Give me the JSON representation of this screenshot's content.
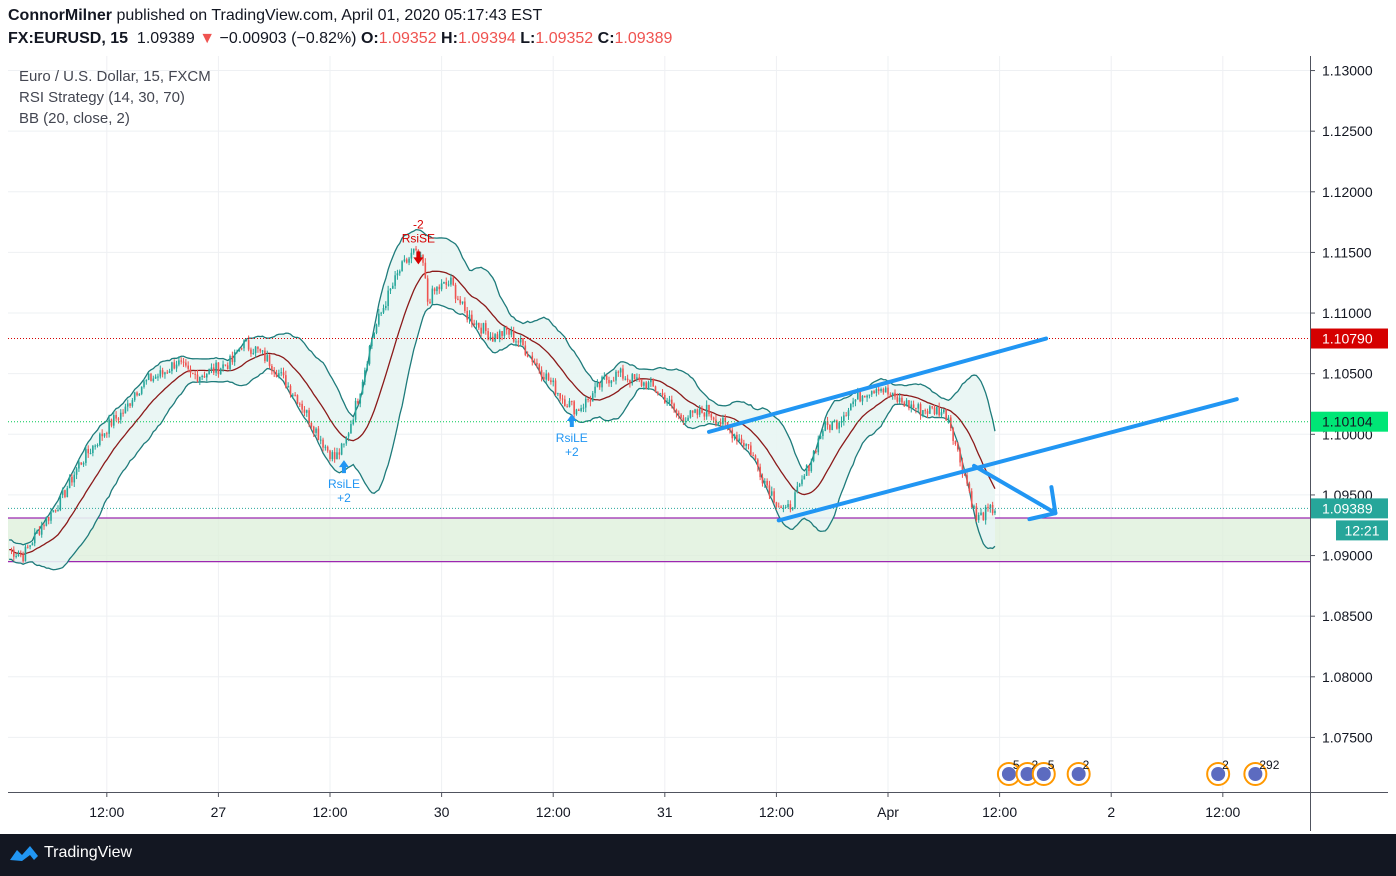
{
  "header": {
    "author": "ConnorMilner",
    "published_text": " published on TradingView.com, April 01, 2020 05:17:43 EST",
    "symbol": "FX:EURUSD, 15",
    "last": "1.09389",
    "change_arrow": "▼",
    "change": "−0.00903 (−0.82%)",
    "o_label": "O:",
    "o_value": "1.09352",
    "h_label": "H:",
    "h_value": "1.09394",
    "l_label": "L:",
    "l_value": "1.09352",
    "c_label": "C:",
    "c_value": "1.09389"
  },
  "legend": {
    "title": "Euro / U.S. Dollar, 15, FXCM",
    "strategy": "RSI Strategy (14, 30, 70)",
    "bb": "BB (20, close, 2)"
  },
  "footer": {
    "brand": "TradingView"
  },
  "colors": {
    "up": "#26a69a",
    "down": "#ef5350",
    "bb_band": "#1e7b7b",
    "bb_basis": "#8b1a1a",
    "fill": "#e8f5f3",
    "zone": "#dcefd9",
    "zone_line": "#9c27b0",
    "arrow": "#2196f3",
    "red_badge": "#d50000",
    "green_badge": "#00e676",
    "teal_badge": "#26a69a"
  },
  "chart_data": {
    "type": "candlestick",
    "title": "Euro / U.S. Dollar, 15, FXCM",
    "ylim": [
      1.0705,
      1.1312
    ],
    "y_ticks": [
      "1.13000",
      "1.12500",
      "1.12000",
      "1.11500",
      "1.11000",
      "1.10500",
      "1.10000",
      "1.09500",
      "1.09000",
      "1.08500",
      "1.08000",
      "1.07500"
    ],
    "x_ticks": [
      "12:00",
      "27",
      "12:00",
      "30",
      "12:00",
      "31",
      "12:00",
      "Apr",
      "12:00",
      "2",
      "12:00"
    ],
    "x_tick_index": [
      42,
      90,
      138,
      186,
      234,
      282,
      330,
      378,
      426,
      474,
      522
    ],
    "n_slots": 560,
    "price_path": [
      [
        0,
        1.0905
      ],
      [
        6,
        1.09
      ],
      [
        14,
        1.0925
      ],
      [
        22,
        1.0945
      ],
      [
        30,
        1.0975
      ],
      [
        38,
        1.0995
      ],
      [
        44,
        1.101
      ],
      [
        50,
        1.102
      ],
      [
        54,
        1.1035
      ],
      [
        60,
        1.1045
      ],
      [
        66,
        1.105
      ],
      [
        72,
        1.106
      ],
      [
        78,
        1.1048
      ],
      [
        84,
        1.105
      ],
      [
        90,
        1.1055
      ],
      [
        96,
        1.106
      ],
      [
        100,
        1.1075
      ],
      [
        106,
        1.107
      ],
      [
        112,
        1.106
      ],
      [
        118,
        1.1045
      ],
      [
        124,
        1.103
      ],
      [
        130,
        1.101
      ],
      [
        136,
        1.099
      ],
      [
        140,
        1.098
      ],
      [
        144,
        1.099
      ],
      [
        150,
        1.103
      ],
      [
        156,
        1.108
      ],
      [
        162,
        1.111
      ],
      [
        168,
        1.1135
      ],
      [
        174,
        1.115
      ],
      [
        178,
        1.114
      ],
      [
        180,
        1.111
      ],
      [
        184,
        1.112
      ],
      [
        190,
        1.1125
      ],
      [
        196,
        1.11
      ],
      [
        202,
        1.109
      ],
      [
        208,
        1.108
      ],
      [
        214,
        1.1085
      ],
      [
        220,
        1.1075
      ],
      [
        226,
        1.106
      ],
      [
        232,
        1.1045
      ],
      [
        238,
        1.103
      ],
      [
        244,
        1.102
      ],
      [
        250,
        1.103
      ],
      [
        256,
        1.1045
      ],
      [
        262,
        1.105
      ],
      [
        268,
        1.1045
      ],
      [
        276,
        1.104
      ],
      [
        282,
        1.103
      ],
      [
        288,
        1.1015
      ],
      [
        294,
        1.1015
      ],
      [
        300,
        1.102
      ],
      [
        306,
        1.101
      ],
      [
        312,
        1.1
      ],
      [
        318,
        1.099
      ],
      [
        324,
        1.0965
      ],
      [
        330,
        1.0945
      ],
      [
        334,
        1.0935
      ],
      [
        340,
        1.0955
      ],
      [
        344,
        1.0975
      ],
      [
        350,
        1.1005
      ],
      [
        356,
        1.101
      ],
      [
        362,
        1.1025
      ],
      [
        368,
        1.1035
      ],
      [
        374,
        1.104
      ],
      [
        380,
        1.103
      ],
      [
        386,
        1.1025
      ],
      [
        392,
        1.102
      ],
      [
        400,
        1.102
      ],
      [
        404,
        1.1015
      ],
      [
        408,
        1.0985
      ],
      [
        412,
        1.096
      ],
      [
        416,
        1.093
      ],
      [
        420,
        1.0935
      ],
      [
        424,
        1.0939
      ]
    ],
    "price_lines": [
      {
        "value": 1.1079,
        "label": "1.10790",
        "color": "#d50000",
        "style": "dotted"
      },
      {
        "value": 1.10104,
        "label": "1.10104",
        "color": "#00c853",
        "style": "dotted"
      },
      {
        "value": 1.09389,
        "label": "1.09389",
        "color": "#26a69a",
        "style": "dotted",
        "countdown": "12:21"
      }
    ],
    "zone": {
      "top": 1.0931,
      "bottom": 1.0895
    },
    "signals": [
      {
        "index": 144,
        "price": 1.0982,
        "side": "long",
        "name": "RsiLE",
        "qty": "+2"
      },
      {
        "index": 176,
        "price": 1.115,
        "side": "short",
        "name": "RsiSE",
        "qty": "-2"
      },
      {
        "index": 242,
        "price": 1.102,
        "side": "long",
        "name": "RsiLE",
        "qty": "+2"
      }
    ],
    "trend_lines": [
      {
        "from": [
          301,
          1.1002
        ],
        "to": [
          446,
          1.1079
        ]
      },
      {
        "from": [
          331,
          1.0929
        ],
        "to": [
          528,
          1.1029
        ]
      },
      {
        "from": [
          415,
          1.0974
        ],
        "to": [
          450,
          1.0935
        ]
      }
    ],
    "event_icons": [
      {
        "index": 430,
        "label": "5"
      },
      {
        "index": 438,
        "label": "2"
      },
      {
        "index": 445,
        "label": "5"
      },
      {
        "index": 460,
        "label": "2"
      },
      {
        "index": 520,
        "label": "2"
      },
      {
        "index": 536,
        "label": "292"
      }
    ]
  }
}
